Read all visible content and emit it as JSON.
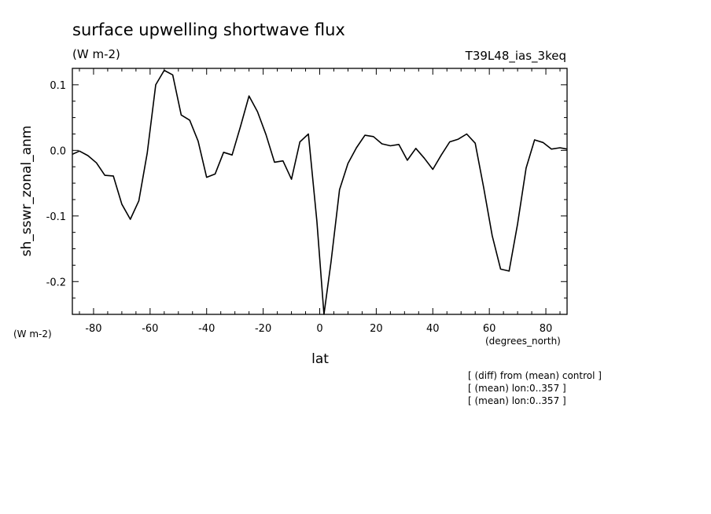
{
  "chart_data": {
    "type": "line",
    "title": "surface upwelling shortwave flux",
    "subtitle": "(W m-2)",
    "experiment": "T39L48_ias_3keq",
    "xlabel": "lat",
    "ylabel": "sh_sswr_zonal_anm",
    "xunits": "(degrees_north)",
    "yunits": "(W m-2)",
    "xlim": [
      -87.5,
      87.5
    ],
    "ylim": [
      -0.25,
      0.125
    ],
    "xticks": [
      -80,
      -60,
      -40,
      -20,
      0,
      20,
      40,
      60,
      80
    ],
    "xtick_labels": [
      "-80",
      "-60",
      "-40",
      "-20",
      "0",
      "20",
      "40",
      "60",
      "80"
    ],
    "yticks": [
      0.1,
      0.0,
      -0.1,
      -0.2
    ],
    "ytick_labels": [
      "0.1",
      "0.0",
      "-0.1",
      "-0.2"
    ],
    "grid": false,
    "notes": [
      "[ (diff) from (mean) control ]",
      "[ (mean) lon:0..357 ]",
      "[ (mean) lon:0..357 ]"
    ],
    "series": [
      {
        "color": "#000000",
        "x": [
          -87.5,
          -85,
          -82,
          -79,
          -76,
          -73,
          -70,
          -67,
          -64,
          -61,
          -58,
          -55,
          -52,
          -49,
          -46,
          -43,
          -40,
          -37,
          -34,
          -31,
          -28,
          -25,
          -22,
          -19,
          -16,
          -13,
          -10,
          -7,
          -4,
          -1,
          1.5,
          4,
          7,
          10,
          13,
          16,
          19,
          22,
          25,
          28,
          31,
          34,
          37,
          40,
          43,
          46,
          49,
          52,
          55,
          58,
          61,
          64,
          67,
          70,
          73,
          76,
          79,
          82,
          85,
          87.5
        ],
        "y": [
          -0.006,
          -0.001,
          -0.008,
          -0.019,
          -0.038,
          -0.039,
          -0.082,
          -0.105,
          -0.077,
          -0.004,
          0.1,
          0.122,
          0.115,
          0.054,
          0.046,
          0.014,
          -0.041,
          -0.036,
          -0.003,
          -0.007,
          0.037,
          0.083,
          0.059,
          0.024,
          -0.018,
          -0.016,
          -0.044,
          0.013,
          0.025,
          -0.108,
          -0.25,
          -0.17,
          -0.06,
          -0.02,
          0.004,
          0.023,
          0.021,
          0.01,
          0.007,
          0.009,
          -0.015,
          0.003,
          -0.012,
          -0.029,
          -0.007,
          0.013,
          0.017,
          0.025,
          0.011,
          -0.057,
          -0.13,
          -0.181,
          -0.184,
          -0.112,
          -0.027,
          0.016,
          0.012,
          0.002,
          0.004,
          0.002
        ]
      }
    ]
  }
}
